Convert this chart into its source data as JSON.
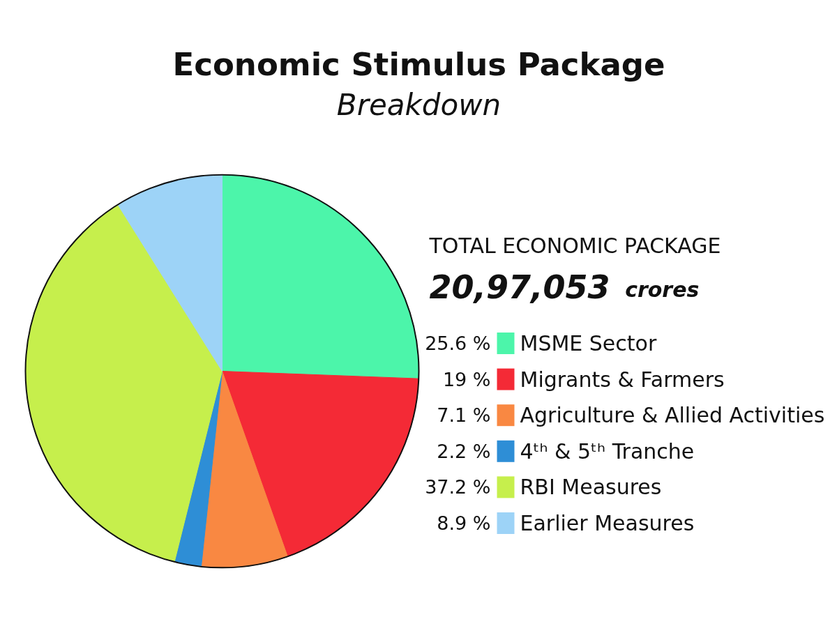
{
  "chart_data": {
    "type": "pie",
    "title": "Economic Stimulus Package",
    "subtitle": "Breakdown",
    "annotations": [
      "TOTAL ECONOMIC PACKAGE",
      "20,97,053 crores"
    ],
    "categories": [
      "MSME Sector",
      "Migrants & Farmers",
      "Agriculture & Allied Activities",
      "4ᵗʰ & 5ᵗʰ Tranche",
      "RBI Measures",
      "Earlier Measures"
    ],
    "values": [
      25.6,
      19,
      7.1,
      2.2,
      37.2,
      8.9
    ],
    "value_labels": [
      "25.6 %",
      "19 %",
      "7.1 %",
      "2.2 %",
      "37.2 %",
      "8.9 %"
    ],
    "colors": [
      "#4cf5aa",
      "#f42a36",
      "#f98842",
      "#2e8ed6",
      "#c6ef4c",
      "#9dd3f7"
    ],
    "legend": "right"
  }
}
